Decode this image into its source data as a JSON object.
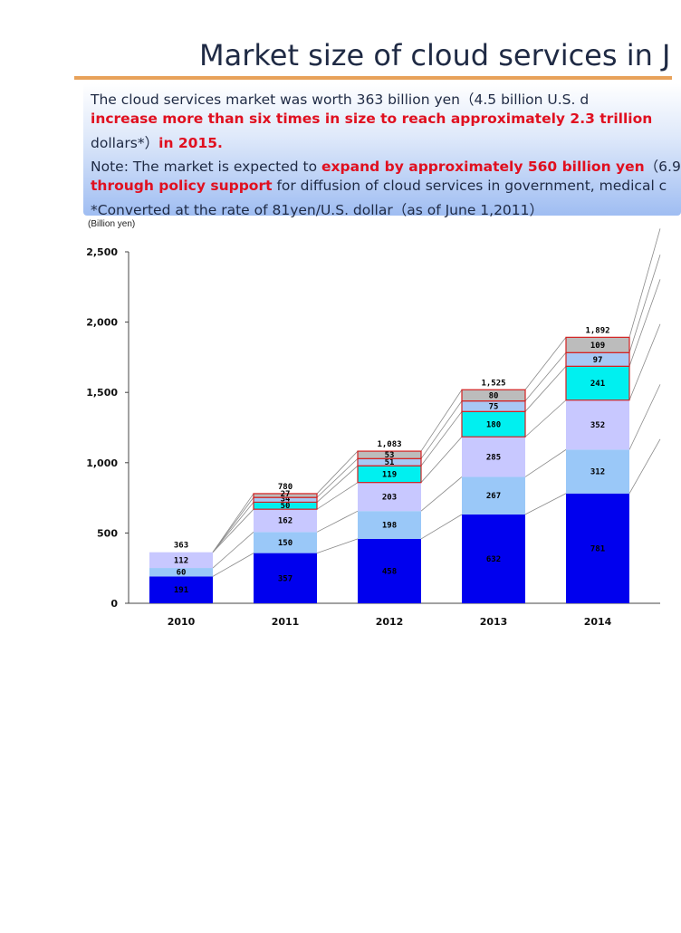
{
  "title": "Market size of cloud services in J",
  "summary": {
    "line1": "The cloud services market  was worth 363 billion yen（4.5 billion U.S. d",
    "line2": "increase more than six times in size to reach approximately 2.3 trillion",
    "line3_a": "dollars*）",
    "line3_b": "in 2015.",
    "line4_a": "Note: The market is expected to ",
    "line4_b": "expand by approximately 560 billion yen",
    "line4_c": "（6.9",
    "line5_a": "through policy support",
    "line5_b": " for diffusion of cloud services in government, medical c",
    "line6": "*Converted at the rate of 81yen/U.S. dollar（as of June 1,2011）"
  },
  "colors": {
    "s1": "#0000ee",
    "s2": "#9ac8f8",
    "s3": "#c8c8ff",
    "s4": "#00f0f0",
    "s5": "#a8c8f4",
    "s6": "#bcbcbc",
    "red_border": "#d42020",
    "title": "#1f2a44",
    "accent_rule": "#e8a25a"
  },
  "chart_data": {
    "type": "bar",
    "stacked": true,
    "unit_label": "(Billion yen)",
    "ylim": [
      0,
      2500
    ],
    "yticks": [
      "0",
      "500",
      "1,000",
      "1,500",
      "2,000",
      "2,500"
    ],
    "categories": [
      "2010",
      "2011",
      "2012",
      "2013",
      "2014"
    ],
    "series": [
      {
        "values": [
          191,
          357,
          458,
          632,
          781
        ]
      },
      {
        "values": [
          60,
          150,
          198,
          267,
          312
        ]
      },
      {
        "values": [
          112,
          162,
          203,
          285,
          352
        ]
      },
      {
        "values": [
          0,
          50,
          119,
          180,
          241
        ]
      },
      {
        "values": [
          0,
          34,
          51,
          75,
          97
        ]
      },
      {
        "values": [
          0,
          27,
          53,
          80,
          109
        ]
      }
    ],
    "totals": [
      "363",
      "780",
      "1,083",
      "1,525",
      "1,892"
    ],
    "labels": [
      [
        "191",
        "357",
        "458",
        "632",
        "781"
      ],
      [
        "60",
        "150",
        "198",
        "267",
        "312"
      ],
      [
        "112",
        "162",
        "203",
        "285",
        "352"
      ],
      [
        "",
        "50",
        "119",
        "180",
        "241"
      ],
      [
        "",
        "34",
        "51",
        "75",
        "97"
      ],
      [
        "",
        "27",
        "53",
        "80",
        "109"
      ]
    ]
  }
}
